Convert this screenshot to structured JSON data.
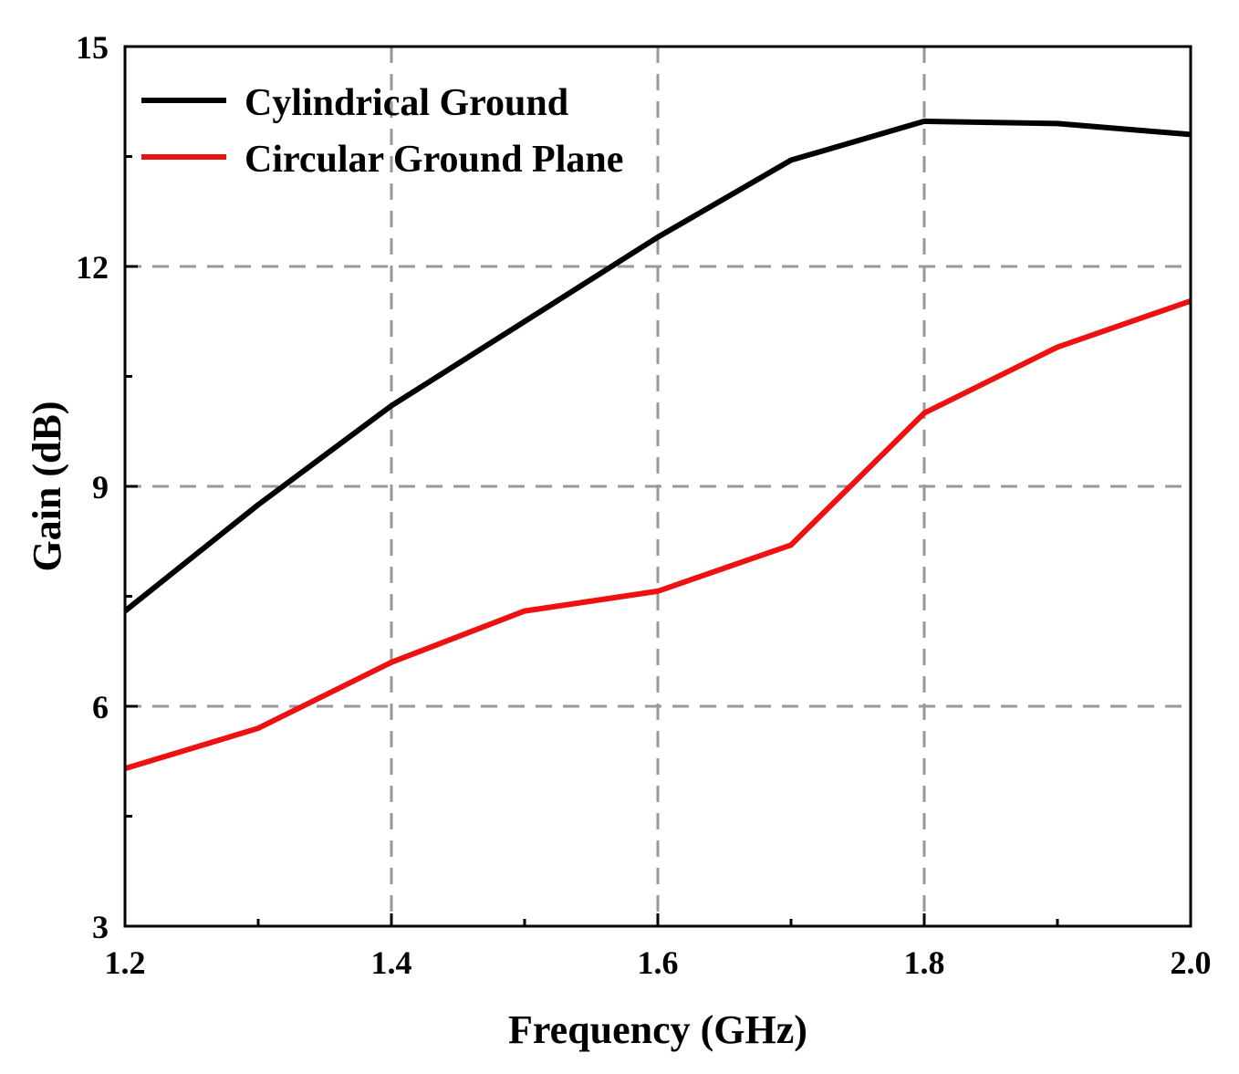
{
  "chart_data": {
    "type": "line",
    "title": "",
    "xlabel": "Frequency (GHz)",
    "ylabel": "Gain (dB)",
    "xlim": [
      1.2,
      2.0
    ],
    "ylim": [
      3,
      15
    ],
    "x_ticks": [
      "1.2",
      "1.4",
      "1.6",
      "1.8",
      "2.0"
    ],
    "x_tick_values": [
      1.2,
      1.4,
      1.6,
      1.8,
      2.0
    ],
    "x_minor_tick_values": [
      1.3,
      1.5,
      1.7,
      1.9
    ],
    "y_ticks": [
      "3",
      "6",
      "9",
      "12",
      "15"
    ],
    "y_tick_values": [
      3,
      6,
      9,
      12,
      15
    ],
    "y_minor_tick_values": [
      4.5,
      7.5,
      10.5,
      13.5
    ],
    "grid": true,
    "grid_color": "#999999",
    "legend_position": "top-left",
    "x": [
      1.2,
      1.3,
      1.4,
      1.5,
      1.6,
      1.7,
      1.8,
      1.9,
      2.0
    ],
    "series": [
      {
        "name": "Cylindrical Ground",
        "color": "#000000",
        "values": [
          7.3,
          8.75,
          10.1,
          11.25,
          12.4,
          13.45,
          13.98,
          13.95,
          13.8
        ]
      },
      {
        "name": "Circular Ground Plane",
        "color": "#ee1111",
        "values": [
          5.15,
          5.7,
          6.6,
          7.3,
          7.57,
          8.2,
          10.0,
          10.9,
          11.53
        ]
      }
    ]
  }
}
